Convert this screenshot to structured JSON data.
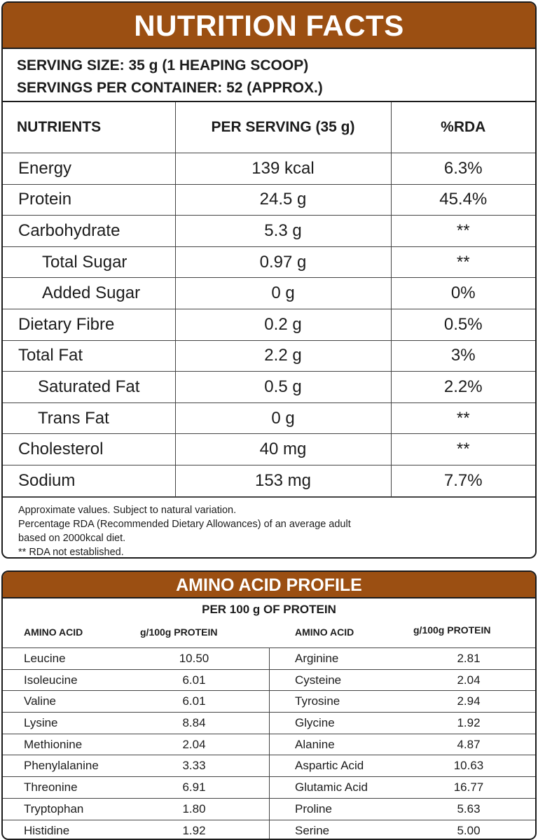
{
  "nutrition": {
    "title": "NUTRITION FACTS",
    "serving_size": "SERVING SIZE: 35 g (1 HEAPING SCOOP)",
    "servings_per_container": "SERVINGS PER CONTAINER: 52 (APPROX.)",
    "headers": [
      "NUTRIENTS",
      "PER SERVING (35 g)",
      "%RDA"
    ],
    "rows": [
      {
        "nutrient": "Energy",
        "per_serving": "139 kcal",
        "rda": "6.3%"
      },
      {
        "nutrient": "Protein",
        "per_serving": "24.5 g",
        "rda": "45.4%"
      },
      {
        "nutrient": "Carbohydrate",
        "per_serving": "5.3 g",
        "rda": "**"
      },
      {
        "nutrient": "Total Sugar",
        "per_serving": "0.97 g",
        "rda": "**"
      },
      {
        "nutrient": "Added Sugar",
        "per_serving": "0 g",
        "rda": "0%"
      },
      {
        "nutrient": "Dietary Fibre",
        "per_serving": "0.2 g",
        "rda": "0.5%"
      },
      {
        "nutrient": "Total Fat",
        "per_serving": "2.2 g",
        "rda": "3%"
      },
      {
        "nutrient": "Saturated Fat",
        "per_serving": "0.5 g",
        "rda": "2.2%"
      },
      {
        "nutrient": "Trans Fat",
        "per_serving": "0 g",
        "rda": "**"
      },
      {
        "nutrient": "Cholesterol",
        "per_serving": "40 mg",
        "rda": "**"
      },
      {
        "nutrient": "Sodium",
        "per_serving": "153 mg",
        "rda": "7.7%"
      }
    ],
    "notes": [
      "Approximate values. Subject to natural variation.",
      "Percentage RDA (Recommended Dietary Allowances) of an average adult",
      "based on 2000kcal diet.",
      "** RDA not established."
    ]
  },
  "amino": {
    "title": "AMINO ACID PROFILE",
    "subtitle": "PER 100 g OF PROTEIN",
    "col_name": "AMINO ACID",
    "col_value": "g/100g PROTEIN",
    "left": [
      {
        "name": "Leucine",
        "value": "10.50"
      },
      {
        "name": "Isoleucine",
        "value": "6.01"
      },
      {
        "name": "Valine",
        "value": "6.01"
      },
      {
        "name": "Lysine",
        "value": "8.84"
      },
      {
        "name": "Methionine",
        "value": "2.04"
      },
      {
        "name": "Phenylalanine",
        "value": "3.33"
      },
      {
        "name": "Threonine",
        "value": "6.91"
      },
      {
        "name": "Tryptophan",
        "value": "1.80"
      },
      {
        "name": "Histidine",
        "value": "1.92"
      }
    ],
    "right": [
      {
        "name": "Arginine",
        "value": "2.81"
      },
      {
        "name": "Cysteine",
        "value": "2.04"
      },
      {
        "name": "Tyrosine",
        "value": "2.94"
      },
      {
        "name": "Glycine",
        "value": "1.92"
      },
      {
        "name": "Alanine",
        "value": "4.87"
      },
      {
        "name": "Aspartic Acid",
        "value": "10.63"
      },
      {
        "name": "Glutamic Acid",
        "value": "16.77"
      },
      {
        "name": "Proline",
        "value": "5.63"
      },
      {
        "name": "Serine",
        "value": "5.00"
      }
    ]
  },
  "colors": {
    "accent": "#9b4f12",
    "border": "#1b1b1b",
    "text": "#1c1c1c"
  }
}
